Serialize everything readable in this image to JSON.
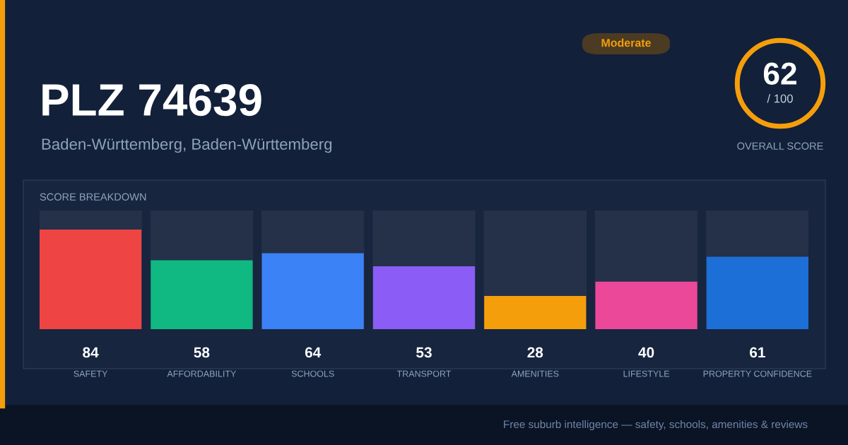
{
  "chart_data": {
    "type": "bar",
    "title": "PLZ 74639",
    "subtitle": "Baden-Württemberg, Baden-Württemberg",
    "categories": [
      "SAFETY",
      "AFFORDABILITY",
      "SCHOOLS",
      "TRANSPORT",
      "AMENITIES",
      "LIFESTYLE",
      "PROPERTY CONFIDENCE"
    ],
    "values": [
      84,
      58,
      64,
      53,
      28,
      40,
      61
    ],
    "colors": [
      "#ef4444",
      "#10b981",
      "#3b82f6",
      "#8b5cf6",
      "#f59e0b",
      "#ec4899",
      "#1d6fd8"
    ],
    "ylim": [
      0,
      100
    ],
    "tick_labels": "x",
    "data_labels": true,
    "grid": false,
    "legend": false,
    "annotations": [
      "SCORE BREAKDOWN",
      "Moderate",
      "62",
      "/ 100",
      "OVERALL SCORE",
      "Free suburb intelligence — safety, schools, amenities & reviews"
    ]
  }
}
